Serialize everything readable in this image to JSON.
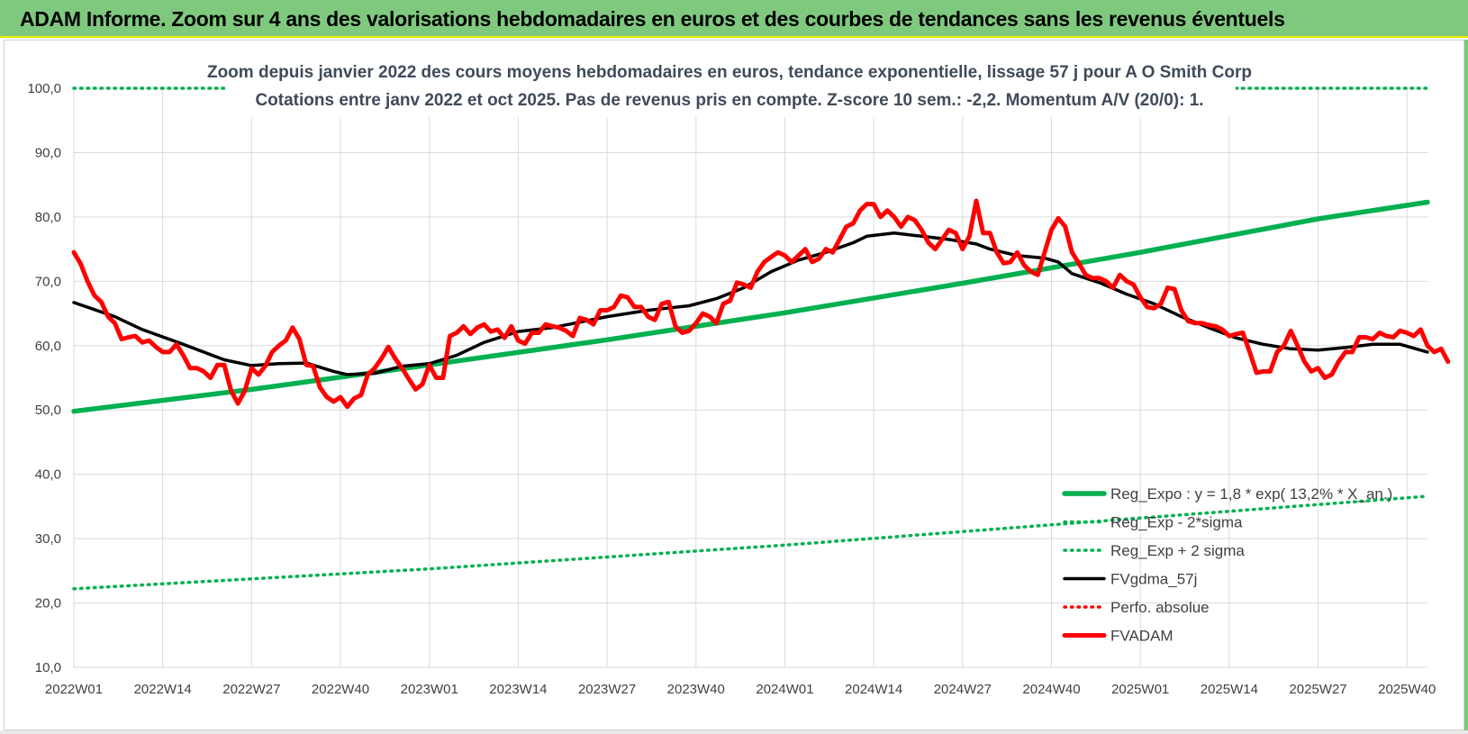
{
  "header": {
    "title": "ADAM Informe. Zoom sur 4 ans des valorisations hebdomadaires en euros et des courbes de tendances sans les revenus éventuels"
  },
  "colors": {
    "banner": "#7fc97f",
    "reg_expo": "#00b050",
    "fvadam": "#ff0000",
    "fvgdma": "#000000",
    "grid": "#d9d9d9"
  },
  "chart_data": {
    "type": "line",
    "title": "Zoom depuis janvier 2022 des cours moyens hebdomadaires en euros, tendance exponentielle, lissage 57 j pour A O Smith Corp",
    "subtitle": "Cotations entre janv 2022 et oct 2025. Pas de revenus pris en compte. Z-score 10 sem.: -2,2. Momentum A/V (20/0): 1.",
    "ylim": [
      10,
      100
    ],
    "y_ticks": [
      "100,0",
      "90,0",
      "80,0",
      "70,0",
      "60,0",
      "50,0",
      "40,0",
      "30,0",
      "20,0",
      "10,0"
    ],
    "x_range": [
      0,
      198
    ],
    "x_ticks": [
      {
        "label": "2022W01",
        "x": 0
      },
      {
        "label": "2022W14",
        "x": 13
      },
      {
        "label": "2022W27",
        "x": 26
      },
      {
        "label": "2022W40",
        "x": 39
      },
      {
        "label": "2023W01",
        "x": 52
      },
      {
        "label": "2023W14",
        "x": 65
      },
      {
        "label": "2023W27",
        "x": 78
      },
      {
        "label": "2023W40",
        "x": 91
      },
      {
        "label": "2024W01",
        "x": 104
      },
      {
        "label": "2024W14",
        "x": 117
      },
      {
        "label": "2024W27",
        "x": 130
      },
      {
        "label": "2024W40",
        "x": 143
      },
      {
        "label": "2025W01",
        "x": 156
      },
      {
        "label": "2025W14",
        "x": 169
      },
      {
        "label": "2025W27",
        "x": 182
      },
      {
        "label": "2025W40",
        "x": 195
      }
    ],
    "series": [
      {
        "name": "Reg_Expo : y = 1,8 * exp( 13,2% * X_an.)",
        "style": "solid",
        "color": "#00b050",
        "points": [
          [
            0,
            49.8
          ],
          [
            26,
            53.2
          ],
          [
            52,
            57.0
          ],
          [
            78,
            60.9
          ],
          [
            104,
            65.1
          ],
          [
            130,
            69.7
          ],
          [
            156,
            74.5
          ],
          [
            182,
            79.7
          ],
          [
            198,
            82.3
          ]
        ]
      },
      {
        "name": "Reg_Exp - 2*sigma",
        "style": "dotted",
        "color": "#00b050",
        "points": [
          [
            0,
            22.2
          ],
          [
            52,
            25.3
          ],
          [
            104,
            29.0
          ],
          [
            156,
            33.2
          ],
          [
            198,
            36.6
          ]
        ]
      },
      {
        "name": "Reg_Exp + 2 sigma",
        "style": "dotted",
        "color": "#00b050",
        "points": [
          [
            0,
            100
          ],
          [
            198,
            100
          ]
        ]
      },
      {
        "name": "FVgdma_57j",
        "style": "solid",
        "color": "#000000",
        "points": [
          [
            0,
            66.7
          ],
          [
            6,
            64.5
          ],
          [
            10,
            62.5
          ],
          [
            16,
            60.2
          ],
          [
            22,
            57.8
          ],
          [
            26,
            56.9
          ],
          [
            30,
            57.2
          ],
          [
            34,
            57.3
          ],
          [
            38,
            56.0
          ],
          [
            40,
            55.5
          ],
          [
            44,
            55.7
          ],
          [
            48,
            56.8
          ],
          [
            52,
            57.2
          ],
          [
            56,
            58.5
          ],
          [
            60,
            60.5
          ],
          [
            65,
            62.2
          ],
          [
            70,
            62.8
          ],
          [
            78,
            64.5
          ],
          [
            84,
            65.5
          ],
          [
            90,
            66.2
          ],
          [
            94,
            67.3
          ],
          [
            98,
            69.0
          ],
          [
            102,
            71.5
          ],
          [
            106,
            73.3
          ],
          [
            110,
            74.5
          ],
          [
            114,
            76.0
          ],
          [
            116,
            77.0
          ],
          [
            120,
            77.5
          ],
          [
            124,
            77.0
          ],
          [
            128,
            76.5
          ],
          [
            132,
            75.8
          ],
          [
            134,
            75.0
          ],
          [
            138,
            74.0
          ],
          [
            142,
            73.6
          ],
          [
            144,
            73.0
          ],
          [
            146,
            71.2
          ],
          [
            150,
            69.8
          ],
          [
            154,
            68.0
          ],
          [
            158,
            66.5
          ],
          [
            162,
            64.5
          ],
          [
            166,
            62.8
          ],
          [
            170,
            61.2
          ],
          [
            174,
            60.2
          ],
          [
            178,
            59.5
          ],
          [
            182,
            59.3
          ],
          [
            186,
            59.7
          ],
          [
            190,
            60.2
          ],
          [
            194,
            60.2
          ],
          [
            198,
            59.0
          ]
        ]
      },
      {
        "name": "Perfo. absolue",
        "style": "dotted",
        "color": "#ff0000",
        "points": []
      },
      {
        "name": "FVADAM",
        "style": "solid",
        "color": "#ff0000",
        "points": [
          [
            0,
            74.5
          ],
          [
            1,
            72.7
          ],
          [
            2,
            70.0
          ],
          [
            3,
            67.8
          ],
          [
            4,
            66.8
          ],
          [
            5,
            64.5
          ],
          [
            6,
            63.5
          ],
          [
            7,
            61.0
          ],
          [
            8,
            61.3
          ],
          [
            9,
            61.5
          ],
          [
            10,
            60.5
          ],
          [
            11,
            60.8
          ],
          [
            12,
            59.8
          ],
          [
            13,
            59.0
          ],
          [
            14,
            59.0
          ],
          [
            15,
            60.2
          ],
          [
            16,
            58.5
          ],
          [
            17,
            56.5
          ],
          [
            18,
            56.5
          ],
          [
            19,
            56.0
          ],
          [
            20,
            55.0
          ],
          [
            21,
            57.0
          ],
          [
            22,
            57.0
          ],
          [
            23,
            53.0
          ],
          [
            24,
            51.0
          ],
          [
            25,
            53.0
          ],
          [
            26,
            56.5
          ],
          [
            27,
            55.5
          ],
          [
            28,
            56.8
          ],
          [
            29,
            59.0
          ],
          [
            30,
            60.0
          ],
          [
            31,
            60.8
          ],
          [
            32,
            62.8
          ],
          [
            33,
            61.0
          ],
          [
            34,
            57.0
          ],
          [
            35,
            56.8
          ],
          [
            36,
            53.5
          ],
          [
            37,
            52.0
          ],
          [
            38,
            51.3
          ],
          [
            39,
            52.0
          ],
          [
            40,
            50.5
          ],
          [
            41,
            51.8
          ],
          [
            42,
            52.3
          ],
          [
            43,
            55.5
          ],
          [
            44,
            56.5
          ],
          [
            45,
            58.0
          ],
          [
            46,
            59.8
          ],
          [
            47,
            58.0
          ],
          [
            48,
            56.5
          ],
          [
            49,
            54.8
          ],
          [
            50,
            53.2
          ],
          [
            51,
            54.0
          ],
          [
            52,
            57.0
          ],
          [
            53,
            55.0
          ],
          [
            54,
            55.0
          ],
          [
            55,
            61.5
          ],
          [
            56,
            62.0
          ],
          [
            57,
            63.0
          ],
          [
            58,
            61.8
          ],
          [
            59,
            62.8
          ],
          [
            60,
            63.3
          ],
          [
            61,
            62.2
          ],
          [
            62,
            62.5
          ],
          [
            63,
            61.2
          ],
          [
            64,
            63.0
          ],
          [
            65,
            60.8
          ],
          [
            66,
            60.3
          ],
          [
            67,
            62.0
          ],
          [
            68,
            62.0
          ],
          [
            69,
            63.3
          ],
          [
            70,
            63.0
          ],
          [
            71,
            62.8
          ],
          [
            72,
            62.3
          ],
          [
            73,
            61.5
          ],
          [
            74,
            64.3
          ],
          [
            75,
            64.0
          ],
          [
            76,
            63.3
          ],
          [
            77,
            65.5
          ],
          [
            78,
            65.5
          ],
          [
            79,
            66.0
          ],
          [
            80,
            67.8
          ],
          [
            81,
            67.5
          ],
          [
            82,
            66.0
          ],
          [
            83,
            66.0
          ],
          [
            84,
            64.5
          ],
          [
            85,
            64.0
          ],
          [
            86,
            66.5
          ],
          [
            87,
            66.8
          ],
          [
            88,
            63.0
          ],
          [
            89,
            62.0
          ],
          [
            90,
            62.3
          ],
          [
            91,
            63.5
          ],
          [
            92,
            65.0
          ],
          [
            93,
            64.5
          ],
          [
            94,
            63.5
          ],
          [
            95,
            66.5
          ],
          [
            96,
            67.0
          ],
          [
            97,
            69.8
          ],
          [
            98,
            69.5
          ],
          [
            99,
            69.0
          ],
          [
            100,
            71.5
          ],
          [
            101,
            73.0
          ],
          [
            102,
            73.8
          ],
          [
            103,
            74.5
          ],
          [
            104,
            74.0
          ],
          [
            105,
            73.0
          ],
          [
            106,
            74.0
          ],
          [
            107,
            75.0
          ],
          [
            108,
            73.0
          ],
          [
            109,
            73.5
          ],
          [
            110,
            75.0
          ],
          [
            111,
            74.5
          ],
          [
            112,
            76.5
          ],
          [
            113,
            78.5
          ],
          [
            114,
            79.0
          ],
          [
            115,
            81.0
          ],
          [
            116,
            82.0
          ],
          [
            117,
            82.0
          ],
          [
            118,
            80.0
          ],
          [
            119,
            81.0
          ],
          [
            120,
            80.0
          ],
          [
            121,
            78.5
          ],
          [
            122,
            80.0
          ],
          [
            123,
            79.5
          ],
          [
            124,
            78.0
          ],
          [
            125,
            76.0
          ],
          [
            126,
            75.0
          ],
          [
            127,
            76.5
          ],
          [
            128,
            78.0
          ],
          [
            129,
            77.5
          ],
          [
            130,
            75.0
          ],
          [
            131,
            77.0
          ],
          [
            132,
            82.5
          ],
          [
            133,
            77.5
          ],
          [
            134,
            77.5
          ],
          [
            135,
            74.5
          ],
          [
            136,
            72.8
          ],
          [
            137,
            73.0
          ],
          [
            138,
            74.5
          ],
          [
            139,
            72.5
          ],
          [
            140,
            71.5
          ],
          [
            141,
            71.0
          ],
          [
            142,
            74.5
          ],
          [
            143,
            78.0
          ],
          [
            144,
            79.8
          ],
          [
            145,
            78.5
          ],
          [
            146,
            74.5
          ],
          [
            147,
            72.8
          ],
          [
            148,
            71.0
          ],
          [
            149,
            70.5
          ],
          [
            150,
            70.5
          ],
          [
            151,
            70.0
          ],
          [
            152,
            69.0
          ],
          [
            153,
            71.0
          ],
          [
            154,
            70.0
          ],
          [
            155,
            69.5
          ],
          [
            156,
            67.5
          ],
          [
            157,
            66.0
          ],
          [
            158,
            65.8
          ],
          [
            159,
            66.5
          ],
          [
            160,
            69.0
          ],
          [
            161,
            68.8
          ],
          [
            162,
            65.5
          ],
          [
            163,
            63.8
          ],
          [
            164,
            63.5
          ],
          [
            165,
            63.5
          ],
          [
            166,
            63.2
          ],
          [
            167,
            63.0
          ],
          [
            168,
            62.5
          ],
          [
            169,
            61.5
          ],
          [
            170,
            61.8
          ],
          [
            171,
            62.0
          ],
          [
            172,
            59.0
          ],
          [
            173,
            55.8
          ],
          [
            174,
            56.0
          ],
          [
            175,
            56.0
          ],
          [
            176,
            59.0
          ],
          [
            177,
            60.0
          ],
          [
            178,
            62.3
          ],
          [
            179,
            60.0
          ],
          [
            180,
            57.5
          ],
          [
            181,
            56.0
          ],
          [
            182,
            56.5
          ],
          [
            183,
            55.0
          ],
          [
            184,
            55.5
          ],
          [
            185,
            57.5
          ],
          [
            186,
            59.0
          ],
          [
            187,
            59.0
          ],
          [
            188,
            61.3
          ],
          [
            189,
            61.3
          ],
          [
            190,
            61.0
          ],
          [
            191,
            62.0
          ],
          [
            192,
            61.5
          ],
          [
            193,
            61.3
          ],
          [
            194,
            62.3
          ],
          [
            195,
            62.0
          ],
          [
            196,
            61.5
          ],
          [
            197,
            62.5
          ],
          [
            198,
            60.0
          ],
          [
            199,
            59.0
          ],
          [
            200,
            59.5
          ],
          [
            201,
            57.5
          ]
        ]
      }
    ]
  }
}
